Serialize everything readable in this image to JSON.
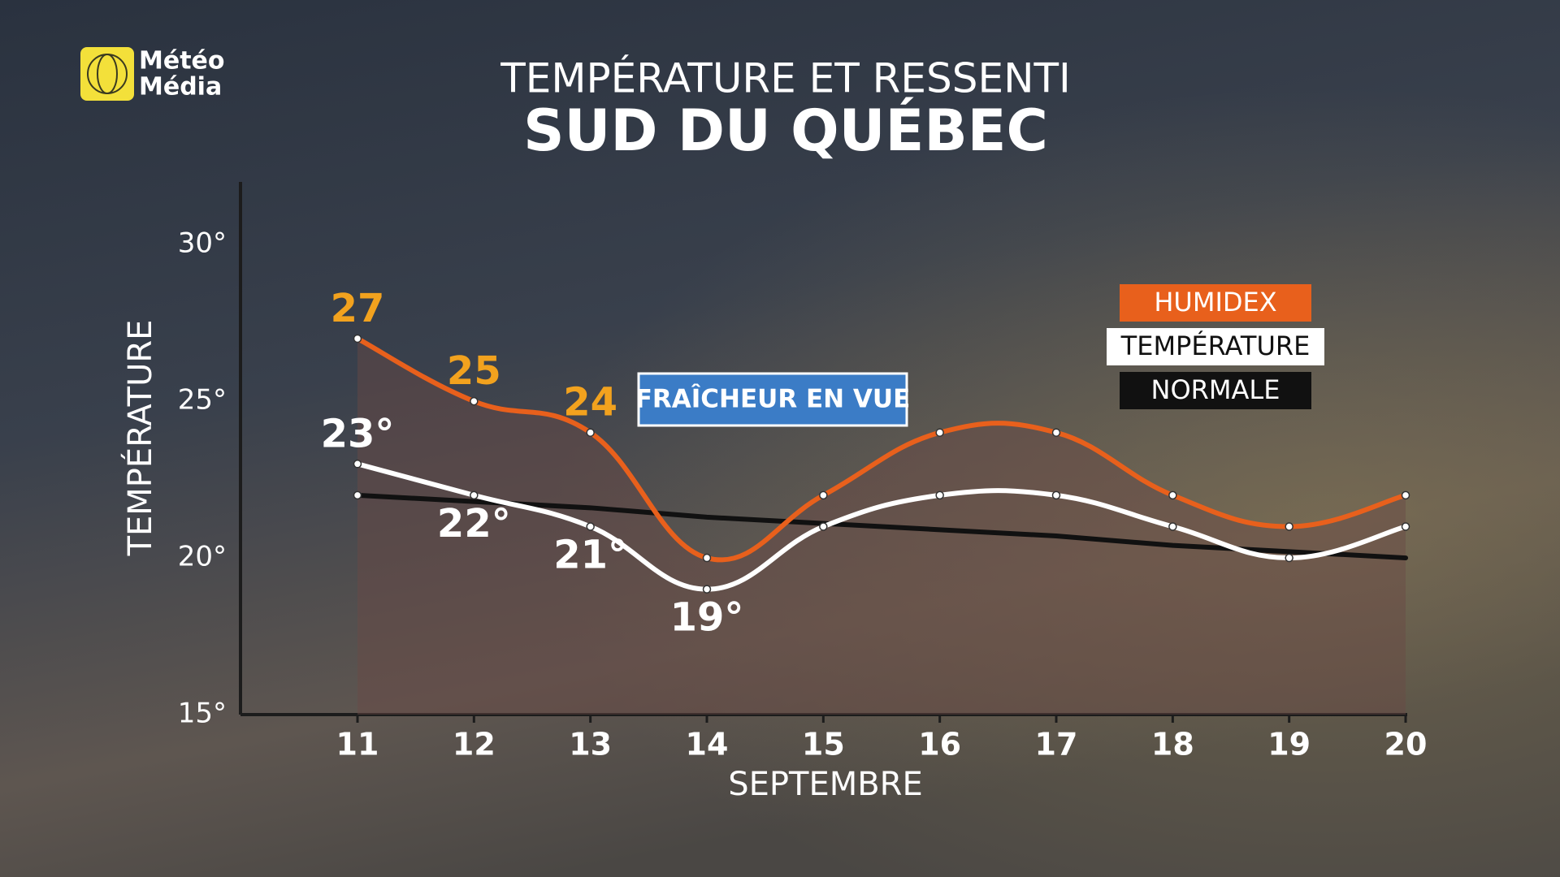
{
  "brand": {
    "line1": "Météo",
    "line2": "Média"
  },
  "chart_data": {
    "type": "line",
    "title": "TEMPÉRATURE ET RESSENTI",
    "subtitle": "SUD DU QUÉBEC",
    "ylabel": "TEMPÉRATURE",
    "xlabel": "SEPTEMBRE",
    "annotation": "FRAÎCHEUR EN VUE",
    "categories": [
      "11",
      "12",
      "13",
      "14",
      "15",
      "16",
      "17",
      "18",
      "19",
      "20"
    ],
    "series": [
      {
        "name": "HUMIDEX",
        "color": "#e8601c",
        "text_color": "#ffffff",
        "label_color": "#f2a21e",
        "fill_under": true,
        "values": [
          27,
          25,
          24,
          20,
          22,
          24,
          24,
          22,
          21,
          22
        ],
        "value_labels": [
          "27",
          "25",
          "24",
          null,
          null,
          null,
          null,
          null,
          null,
          null
        ]
      },
      {
        "name": "TEMPÉRATURE",
        "color": "#ffffff",
        "text_color": "#111111",
        "label_color": "#ffffff",
        "fill_under": false,
        "values": [
          23,
          22,
          21,
          19,
          21,
          22,
          22,
          21,
          20,
          21
        ],
        "value_labels": [
          "23°",
          "22°",
          "21°",
          "19°",
          null,
          null,
          null,
          null,
          null,
          null
        ]
      },
      {
        "name": "NORMALE",
        "color": "#111111",
        "text_color": "#ffffff",
        "straight": true,
        "fill_under": false,
        "values": [
          22,
          21.8,
          21.6,
          21.3,
          21.1,
          20.9,
          20.7,
          20.4,
          20.2,
          20
        ]
      }
    ],
    "ylim": [
      15,
      32
    ],
    "yticks": [
      {
        "value": 15,
        "label": "15°"
      },
      {
        "value": 20,
        "label": "20°"
      },
      {
        "value": 25,
        "label": "25°"
      },
      {
        "value": 30,
        "label": "30°"
      }
    ],
    "grid": false,
    "legend": "right"
  }
}
